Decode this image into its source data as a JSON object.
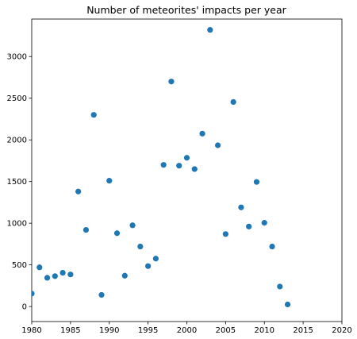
{
  "chart_data": {
    "type": "scatter",
    "title": "Number of meteorites' impacts per year",
    "xlabel": "",
    "ylabel": "",
    "xlim": [
      1980,
      2020
    ],
    "ylim": [
      -180,
      3450
    ],
    "xticks": [
      1980,
      1985,
      1990,
      1995,
      2000,
      2005,
      2010,
      2015,
      2020
    ],
    "yticks": [
      0,
      500,
      1000,
      1500,
      2000,
      2500,
      3000
    ],
    "grid": false,
    "marker_color": "#1f77b4",
    "points": [
      {
        "x": 1980,
        "y": 155
      },
      {
        "x": 1981,
        "y": 470
      },
      {
        "x": 1982,
        "y": 345
      },
      {
        "x": 1983,
        "y": 365
      },
      {
        "x": 1984,
        "y": 405
      },
      {
        "x": 1985,
        "y": 385
      },
      {
        "x": 1986,
        "y": 1380
      },
      {
        "x": 1987,
        "y": 920
      },
      {
        "x": 1988,
        "y": 2300
      },
      {
        "x": 1989,
        "y": 140
      },
      {
        "x": 1990,
        "y": 1510
      },
      {
        "x": 1991,
        "y": 880
      },
      {
        "x": 1992,
        "y": 370
      },
      {
        "x": 1993,
        "y": 975
      },
      {
        "x": 1994,
        "y": 720
      },
      {
        "x": 1995,
        "y": 485
      },
      {
        "x": 1996,
        "y": 575
      },
      {
        "x": 1997,
        "y": 1700
      },
      {
        "x": 1998,
        "y": 2700
      },
      {
        "x": 1999,
        "y": 1690
      },
      {
        "x": 2000,
        "y": 1785
      },
      {
        "x": 2001,
        "y": 1650
      },
      {
        "x": 2002,
        "y": 2075
      },
      {
        "x": 2003,
        "y": 3320
      },
      {
        "x": 2004,
        "y": 1935
      },
      {
        "x": 2005,
        "y": 870
      },
      {
        "x": 2006,
        "y": 2455
      },
      {
        "x": 2007,
        "y": 1190
      },
      {
        "x": 2008,
        "y": 960
      },
      {
        "x": 2009,
        "y": 1495
      },
      {
        "x": 2010,
        "y": 1005
      },
      {
        "x": 2011,
        "y": 720
      },
      {
        "x": 2012,
        "y": 240
      },
      {
        "x": 2013,
        "y": 25
      }
    ]
  }
}
